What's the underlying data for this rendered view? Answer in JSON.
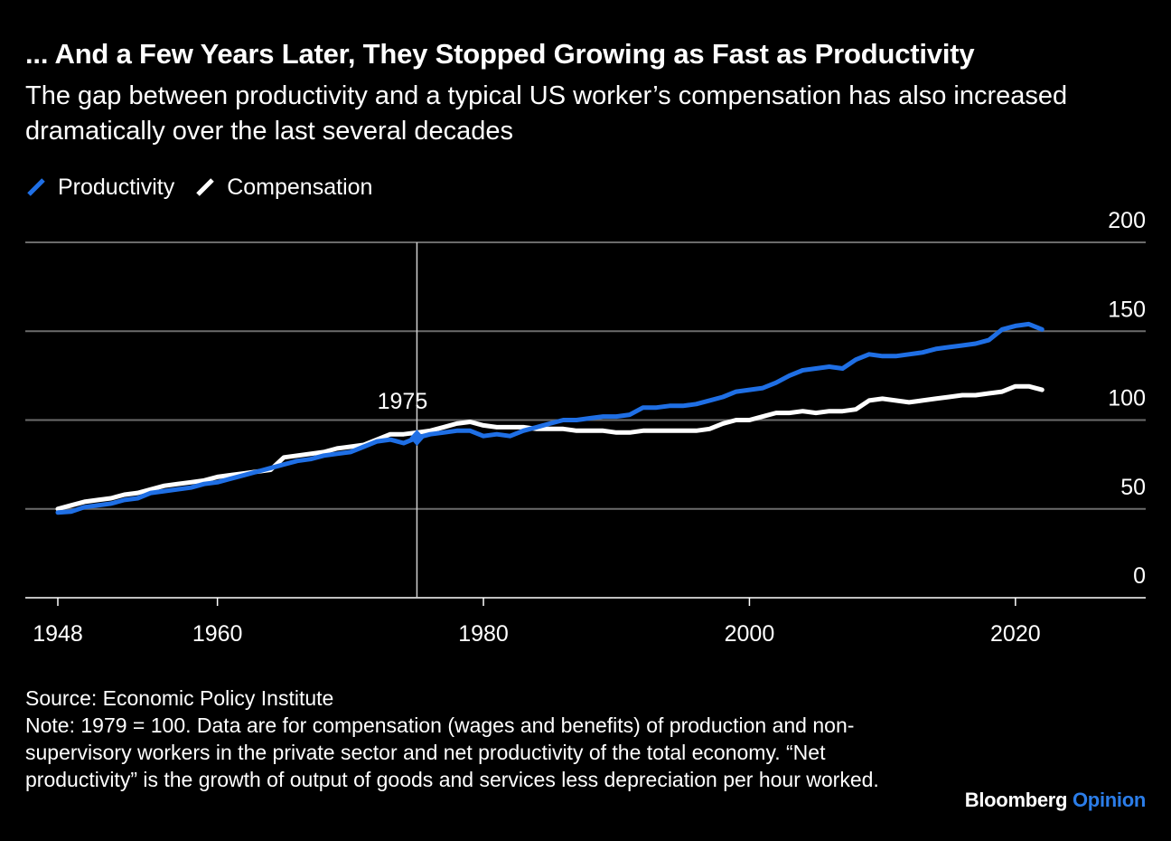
{
  "title": "... And a Few Years Later, They Stopped Growing as Fast as Productivity",
  "subtitle": "The gap between productivity and a typical US worker’s compensation has also increased dramatically over the last several decades",
  "legend": [
    {
      "label": "Productivity",
      "color": "#1f6fe5"
    },
    {
      "label": "Compensation",
      "color": "#ffffff"
    }
  ],
  "source": "Source: Economic Policy Institute",
  "note": "Note: 1979 = 100. Data are for compensation (wages and benefits) of production and non-supervisory workers in the private sector and net productivity of the total economy. “Net productivity” is the growth of output of goods and services less depreciation per hour worked.",
  "brand": {
    "part1": "Bloomberg",
    "part2": "Opinion"
  },
  "chart_data": {
    "type": "line",
    "title": "... And a Few Years Later, They Stopped Growing as Fast as Productivity",
    "xlim": [
      1948,
      2030
    ],
    "ylim": [
      0,
      200
    ],
    "x_ticks": [
      1948,
      1960,
      1980,
      2000,
      2020
    ],
    "y_ticks": [
      0,
      50,
      100,
      150,
      200
    ],
    "grid": true,
    "legend_position": "top-left",
    "annotation": {
      "label": "1975",
      "x": 1975
    },
    "x": [
      1948,
      1949,
      1950,
      1951,
      1952,
      1953,
      1954,
      1955,
      1956,
      1957,
      1958,
      1959,
      1960,
      1961,
      1962,
      1963,
      1964,
      1965,
      1966,
      1967,
      1968,
      1969,
      1970,
      1971,
      1972,
      1973,
      1974,
      1975,
      1976,
      1977,
      1978,
      1979,
      1980,
      1981,
      1982,
      1983,
      1984,
      1985,
      1986,
      1987,
      1988,
      1989,
      1990,
      1991,
      1992,
      1993,
      1994,
      1995,
      1996,
      1997,
      1998,
      1999,
      2000,
      2001,
      2002,
      2003,
      2004,
      2005,
      2006,
      2007,
      2008,
      2009,
      2010,
      2011,
      2012,
      2013,
      2014,
      2015,
      2016,
      2017,
      2018,
      2019,
      2020,
      2021,
      2022
    ],
    "series": [
      {
        "name": "Productivity",
        "color": "#1f6fe5",
        "values": [
          48,
          48.5,
          51,
          52,
          53,
          55,
          56,
          59,
          60,
          61,
          62,
          64,
          65,
          67,
          69,
          71,
          73,
          75,
          77,
          78,
          80,
          81,
          82,
          85,
          88,
          89,
          87,
          90,
          92,
          93,
          94,
          94,
          91,
          92,
          91,
          94,
          96,
          98,
          100,
          100,
          101,
          102,
          102,
          103,
          107,
          107,
          108,
          108,
          109,
          111,
          113,
          116,
          117,
          118,
          121,
          125,
          128,
          129,
          130,
          129,
          134,
          137,
          136,
          136,
          137,
          138,
          140,
          141,
          142,
          143,
          145,
          151,
          153,
          154,
          151
        ]
      },
      {
        "name": "Compensation",
        "color": "#ffffff",
        "values": [
          50,
          52,
          54,
          55,
          56,
          58,
          59,
          61,
          63,
          64,
          65,
          66,
          68,
          69,
          70,
          71,
          72,
          79,
          80,
          81,
          82,
          84,
          85,
          86,
          89,
          92,
          92,
          93,
          94,
          96,
          98,
          99,
          97,
          96,
          96,
          96,
          95,
          95,
          95,
          94,
          94,
          94,
          93,
          93,
          94,
          94,
          94,
          94,
          94,
          95,
          98,
          100,
          100,
          102,
          104,
          104,
          105,
          104,
          105,
          105,
          106,
          111,
          112,
          111,
          110,
          111,
          112,
          113,
          114,
          114,
          115,
          116,
          119,
          119,
          117
        ]
      }
    ]
  }
}
